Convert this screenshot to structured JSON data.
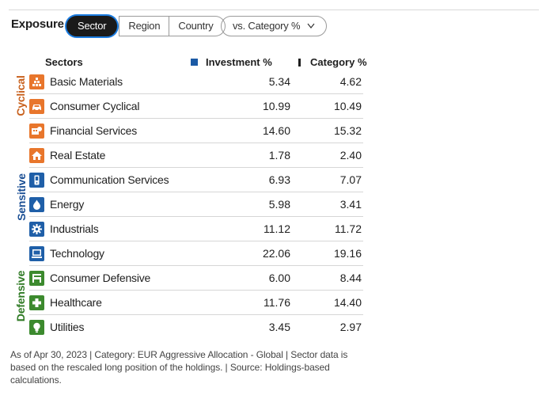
{
  "header": {
    "title": "Exposure",
    "tabs": [
      {
        "label": "Sector",
        "active": true
      },
      {
        "label": "Region",
        "active": false
      },
      {
        "label": "Country",
        "active": false
      }
    ],
    "compare_dropdown": {
      "label": "vs. Category %",
      "icon": "chevron-down-icon"
    }
  },
  "table": {
    "headers": {
      "sectors": "Sectors",
      "investment": "Investment %",
      "category": "Category %"
    },
    "legend_colors": {
      "investment": "#1b5aa5",
      "category": "#1e1e1e"
    },
    "groups": [
      {
        "label": "Cyclical",
        "color": "#c8601c"
      },
      {
        "label": "Sensitive",
        "color": "#1b4f94"
      },
      {
        "label": "Defensive",
        "color": "#2f7a24"
      }
    ],
    "rows": [
      {
        "name": "Basic Materials",
        "investment": "5.34",
        "category": "4.62",
        "icon": "basic-materials-icon"
      },
      {
        "name": "Consumer Cyclical",
        "investment": "10.99",
        "category": "10.49",
        "icon": "car-icon"
      },
      {
        "name": "Financial Services",
        "investment": "14.60",
        "category": "15.32",
        "icon": "financial-services-icon"
      },
      {
        "name": "Real Estate",
        "investment": "1.78",
        "category": "2.40",
        "icon": "house-icon"
      },
      {
        "name": "Communication Services",
        "investment": "6.93",
        "category": "7.07",
        "icon": "phone-icon"
      },
      {
        "name": "Energy",
        "investment": "5.98",
        "category": "3.41",
        "icon": "flame-icon"
      },
      {
        "name": "Industrials",
        "investment": "11.12",
        "category": "11.72",
        "icon": "gear-icon"
      },
      {
        "name": "Technology",
        "investment": "22.06",
        "category": "19.16",
        "icon": "computer-icon"
      },
      {
        "name": "Consumer Defensive",
        "investment": "6.00",
        "category": "8.44",
        "icon": "shopping-cart-icon"
      },
      {
        "name": "Healthcare",
        "investment": "11.76",
        "category": "14.40",
        "icon": "medical-cross-icon"
      },
      {
        "name": "Utilities",
        "investment": "3.45",
        "category": "2.97",
        "icon": "lightbulb-icon"
      }
    ]
  },
  "footnote": "As of Apr 30, 2023 | Category: EUR Aggressive Allocation - Global | Sector data is based on the rescaled long position of the holdings. | Source: Holdings-based calculations."
}
